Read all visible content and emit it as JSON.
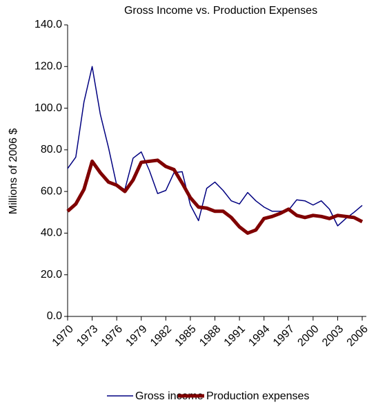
{
  "chart_data": {
    "type": "line",
    "title": "Gross Income vs. Production Expenses",
    "y_label": "Millions of 2006 $",
    "x": [
      1970,
      1971,
      1972,
      1973,
      1974,
      1975,
      1976,
      1977,
      1978,
      1979,
      1980,
      1981,
      1982,
      1983,
      1984,
      1985,
      1986,
      1987,
      1988,
      1989,
      1990,
      1991,
      1992,
      1993,
      1994,
      1995,
      1996,
      1997,
      1998,
      1999,
      2000,
      2001,
      2002,
      2003,
      2004,
      2005,
      2006
    ],
    "xlim": [
      1970,
      2006
    ],
    "xticks": [
      1970,
      1973,
      1976,
      1979,
      1982,
      1985,
      1988,
      1991,
      1994,
      1997,
      2000,
      2003,
      2006
    ],
    "ylim": [
      0,
      140
    ],
    "yticks": [
      {
        "value": 0,
        "label": "0.0"
      },
      {
        "value": 20,
        "label": "20.0"
      },
      {
        "value": 40,
        "label": "40.0"
      },
      {
        "value": 60,
        "label": "60.0"
      },
      {
        "value": 80,
        "label": "80.0"
      },
      {
        "value": 100,
        "label": "100.0"
      },
      {
        "value": 120,
        "label": "120.0"
      },
      {
        "value": 140,
        "label": "140.0"
      }
    ],
    "series": [
      {
        "name": "Gross income",
        "color": "#000080",
        "width": 1.5,
        "values": [
          71,
          76.5,
          103,
          120,
          97,
          81,
          63,
          61,
          76,
          79,
          70,
          59,
          60.5,
          69,
          69.5,
          53.5,
          46,
          61.5,
          64.5,
          60.5,
          55.5,
          54,
          59.5,
          55.5,
          52.5,
          50.5,
          50.5,
          51,
          56,
          55.5,
          53.5,
          55.5,
          51.5,
          43.5,
          47,
          50,
          53.3
        ]
      },
      {
        "name": "Production expenses",
        "color": "#800000",
        "width": 5,
        "values": [
          50.5,
          54,
          61,
          74.5,
          69,
          64.5,
          63,
          60,
          65.5,
          74,
          74.5,
          75,
          72,
          70.5,
          64,
          57,
          52.5,
          52,
          50.5,
          50.5,
          47.5,
          43,
          40,
          41.5,
          47,
          48,
          49.5,
          51.5,
          48.5,
          47.5,
          48.5,
          48,
          47,
          48.5,
          48,
          47.5,
          45.5
        ]
      }
    ]
  }
}
